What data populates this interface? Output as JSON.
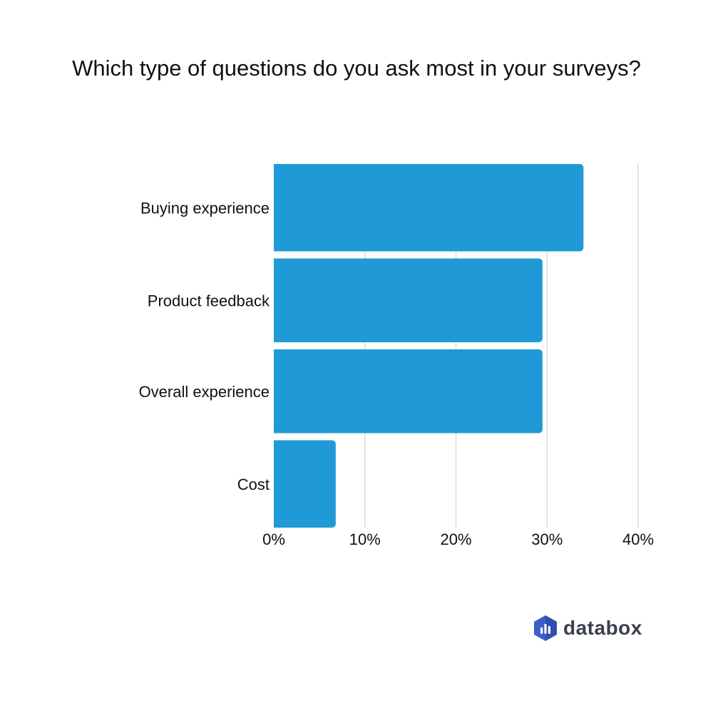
{
  "chart_data": {
    "type": "bar",
    "orientation": "horizontal",
    "title": "Which type of questions do you ask most in your surveys?",
    "categories": [
      "Buying experience",
      "Product feedback",
      "Overall experience",
      "Cost"
    ],
    "values": [
      34,
      29.5,
      29.5,
      6.8
    ],
    "xlim": [
      0,
      40
    ],
    "xticks": [
      "0%",
      "10%",
      "20%",
      "30%",
      "40%"
    ],
    "xtick_values": [
      0,
      10,
      20,
      30,
      40
    ],
    "xlabel": "",
    "ylabel": "",
    "grid": "vertical",
    "bar_color": "#209ad6",
    "grid_color": "#d9d9d9"
  },
  "brand": {
    "logo_text": "databox",
    "icon": "databox-logo-icon",
    "colors": [
      "#3b5fc6",
      "#2a3f99"
    ]
  }
}
